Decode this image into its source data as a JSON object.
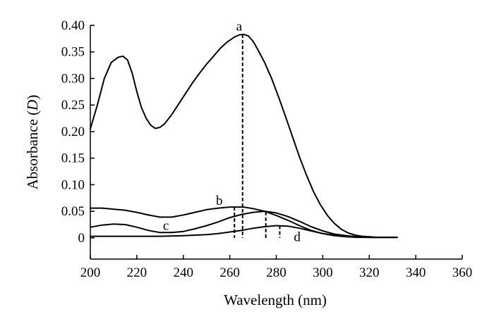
{
  "chart_data": {
    "type": "line",
    "xlabel": "Wavelength (nm)",
    "ylabel_main": "Absorbance (",
    "ylabel_italic": "D",
    "ylabel_end": ")",
    "xlim": [
      200,
      360
    ],
    "ylim": [
      -0.04,
      0.4
    ],
    "x_ticks": [
      200,
      220,
      240,
      260,
      280,
      300,
      320,
      340,
      360
    ],
    "x_tick_labels": [
      "200",
      "220",
      "240",
      "260",
      "280",
      "300",
      "320",
      "340",
      "360"
    ],
    "y_ticks": [
      0,
      0.05,
      0.1,
      0.15,
      0.2,
      0.25,
      0.3,
      0.35,
      0.4
    ],
    "y_tick_labels": [
      "0",
      "0.05",
      "0.10",
      "0.15",
      "0.20",
      "0.25",
      "0.30",
      "0.35",
      "0.40"
    ],
    "grid": false,
    "series": [
      {
        "name": "a",
        "x": [
          200,
          203,
          206,
          209,
          212,
          214,
          216,
          218,
          220,
          222,
          224,
          226,
          228,
          230,
          232,
          235,
          238,
          241,
          244,
          247,
          250,
          253,
          256,
          259,
          262,
          264,
          266,
          268,
          270,
          272,
          275,
          278,
          281,
          284,
          287,
          290,
          293,
          296,
          299,
          302,
          305,
          308,
          311,
          314,
          317,
          320,
          323,
          326,
          329,
          332
        ],
        "y": [
          0.205,
          0.25,
          0.3,
          0.33,
          0.34,
          0.342,
          0.335,
          0.31,
          0.275,
          0.245,
          0.225,
          0.212,
          0.206,
          0.208,
          0.215,
          0.232,
          0.252,
          0.272,
          0.292,
          0.31,
          0.327,
          0.342,
          0.357,
          0.369,
          0.378,
          0.382,
          0.383,
          0.38,
          0.37,
          0.355,
          0.33,
          0.3,
          0.265,
          0.228,
          0.19,
          0.152,
          0.118,
          0.087,
          0.062,
          0.042,
          0.027,
          0.016,
          0.009,
          0.005,
          0.003,
          0.002,
          0.001,
          0.001,
          0.001,
          0.001
        ],
        "peak_x": 265.5,
        "peak_y": 0.383,
        "label_x": 264,
        "label_y": 0.39
      },
      {
        "name": "b",
        "x": [
          200,
          205,
          210,
          215,
          220,
          225,
          230,
          235,
          240,
          245,
          250,
          255,
          260,
          263,
          266,
          270,
          275,
          280,
          285,
          290,
          295,
          300,
          305,
          310,
          315,
          320,
          325,
          332
        ],
        "y": [
          0.056,
          0.056,
          0.054,
          0.052,
          0.048,
          0.043,
          0.039,
          0.039,
          0.043,
          0.048,
          0.053,
          0.056,
          0.058,
          0.058,
          0.058,
          0.055,
          0.05,
          0.042,
          0.033,
          0.023,
          0.014,
          0.008,
          0.004,
          0.002,
          0.001,
          0.001,
          0.001,
          0.001
        ],
        "peak_x": 262,
        "peak_y": 0.058,
        "label_x": 255.5,
        "label_y": 0.062
      },
      {
        "name": "c",
        "x": [
          200,
          205,
          210,
          215,
          220,
          225,
          230,
          235,
          240,
          245,
          250,
          255,
          260,
          265,
          270,
          275,
          280,
          285,
          290,
          295,
          300,
          305,
          310,
          315,
          320,
          325,
          332
        ],
        "y": [
          0.02,
          0.024,
          0.026,
          0.025,
          0.02,
          0.014,
          0.01,
          0.01,
          0.012,
          0.017,
          0.023,
          0.03,
          0.038,
          0.044,
          0.048,
          0.05,
          0.047,
          0.04,
          0.031,
          0.021,
          0.013,
          0.007,
          0.004,
          0.002,
          0.001,
          0.001,
          0.001
        ],
        "peak_x": 275.5,
        "peak_y": 0.049,
        "label_x": 232.5,
        "label_y": 0.015
      },
      {
        "name": "d",
        "x": [
          200,
          210,
          220,
          230,
          240,
          250,
          255,
          260,
          265,
          270,
          275,
          280,
          285,
          290,
          295,
          300,
          305,
          310,
          315,
          320,
          325,
          332
        ],
        "y": [
          0.003,
          0.003,
          0.003,
          0.003,
          0.004,
          0.006,
          0.008,
          0.011,
          0.014,
          0.018,
          0.021,
          0.023,
          0.022,
          0.018,
          0.013,
          0.008,
          0.005,
          0.003,
          0.002,
          0.001,
          0.001,
          0.001
        ],
        "peak_x": 281.5,
        "peak_y": 0.023,
        "label_x": 289,
        "label_y": -0.006
      }
    ]
  }
}
